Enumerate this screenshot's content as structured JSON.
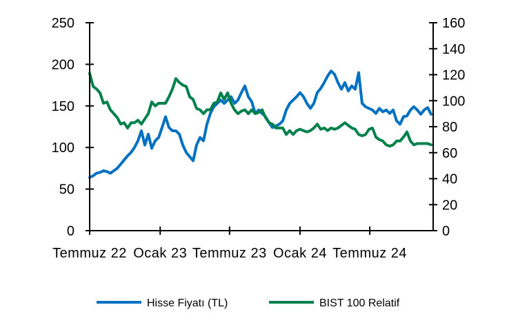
{
  "chart_data": {
    "type": "line",
    "title": "",
    "xlabel": "",
    "ylabel": "",
    "y2label": "",
    "ylim": [
      0,
      250
    ],
    "y2lim": [
      0,
      160
    ],
    "yticks": [
      0,
      50,
      100,
      150,
      200,
      250
    ],
    "y2ticks": [
      0,
      20,
      40,
      60,
      80,
      100,
      120,
      140,
      160
    ],
    "xticks": [
      {
        "date": "2022-07-01",
        "label": "Temmuz 22"
      },
      {
        "date": "2023-01-01",
        "label": "Ocak 23"
      },
      {
        "date": "2023-07-01",
        "label": "Temmuz 23"
      },
      {
        "date": "2024-01-01",
        "label": "Ocak 24"
      },
      {
        "date": "2024-07-01",
        "label": "Temmuz 24"
      }
    ],
    "grid": false,
    "legend_position": "bottom",
    "x": [
      "2022-07-01",
      "2022-07-10",
      "2022-07-19",
      "2022-07-28",
      "2022-08-06",
      "2022-08-15",
      "2022-08-24",
      "2022-09-02",
      "2022-09-11",
      "2022-09-20",
      "2022-09-29",
      "2022-10-08",
      "2022-10-17",
      "2022-10-26",
      "2022-11-04",
      "2022-11-13",
      "2022-11-22",
      "2022-12-01",
      "2022-12-10",
      "2022-12-19",
      "2022-12-28",
      "2023-01-06",
      "2023-01-15",
      "2023-01-24",
      "2023-02-02",
      "2023-02-11",
      "2023-02-20",
      "2023-03-01",
      "2023-03-10",
      "2023-03-19",
      "2023-03-28",
      "2023-04-06",
      "2023-04-15",
      "2023-04-24",
      "2023-05-03",
      "2023-05-12",
      "2023-05-21",
      "2023-05-30",
      "2023-06-08",
      "2023-06-17",
      "2023-06-26",
      "2023-07-05",
      "2023-07-14",
      "2023-07-23",
      "2023-08-01",
      "2023-08-10",
      "2023-08-19",
      "2023-08-28",
      "2023-09-06",
      "2023-09-15",
      "2023-09-24",
      "2023-10-03",
      "2023-10-12",
      "2023-10-21",
      "2023-10-30",
      "2023-11-08",
      "2023-11-17",
      "2023-11-26",
      "2023-12-05",
      "2023-12-14",
      "2023-12-23",
      "2024-01-01",
      "2024-01-10",
      "2024-01-19",
      "2024-01-28",
      "2024-02-06",
      "2024-02-15",
      "2024-02-24",
      "2024-03-04",
      "2024-03-13",
      "2024-03-22",
      "2024-03-31",
      "2024-04-09",
      "2024-04-18",
      "2024-04-27",
      "2024-05-06",
      "2024-05-15",
      "2024-05-24",
      "2024-06-02",
      "2024-06-11",
      "2024-06-20",
      "2024-06-29",
      "2024-07-08",
      "2024-07-17",
      "2024-07-26",
      "2024-08-04",
      "2024-08-13",
      "2024-08-22",
      "2024-08-31",
      "2024-09-09",
      "2024-09-18",
      "2024-09-27",
      "2024-10-06",
      "2024-10-15",
      "2024-10-24",
      "2024-11-02",
      "2024-11-11",
      "2024-11-20",
      "2024-11-29",
      "2024-12-08"
    ],
    "series": [
      {
        "name": "Hisse Fiyatı (TL)",
        "axis": "left",
        "color": "#0070C0",
        "values": [
          64,
          66,
          69,
          70,
          72,
          71,
          69,
          72,
          75,
          80,
          85,
          90,
          94,
          100,
          108,
          120,
          103,
          116,
          99,
          108,
          112,
          124,
          137,
          124,
          120,
          120,
          116,
          103,
          94,
          89,
          84,
          103,
          112,
          108,
          128,
          141,
          149,
          153,
          157,
          153,
          157,
          161,
          153,
          157,
          166,
          174,
          161,
          155,
          141,
          145,
          141,
          137,
          130,
          124,
          126,
          128,
          132,
          145,
          153,
          157,
          161,
          166,
          161,
          153,
          147,
          153,
          166,
          171,
          178,
          186,
          192,
          188,
          178,
          170,
          178,
          168,
          174,
          170,
          190,
          153,
          149,
          147,
          145,
          141,
          147,
          143,
          145,
          141,
          145,
          132,
          128,
          137,
          138,
          145,
          149,
          145,
          140,
          145,
          148,
          140
        ]
      },
      {
        "name": "BIST 100 Relatif",
        "axis": "right",
        "color": "#00804A",
        "values": [
          121,
          111,
          109,
          106,
          98,
          99,
          93,
          90,
          87,
          82,
          83,
          79,
          83,
          83,
          85,
          82,
          86,
          90,
          99,
          96,
          98,
          98,
          98,
          103,
          109,
          117,
          114,
          112,
          111,
          103,
          101,
          94,
          93,
          90,
          93,
          93,
          98,
          99,
          106,
          101,
          106,
          98,
          93,
          90,
          92,
          93,
          90,
          93,
          90,
          91,
          93,
          87,
          83,
          82,
          79,
          79,
          79,
          74,
          77,
          74,
          77,
          78,
          77,
          76,
          77,
          79,
          82,
          78,
          79,
          77,
          79,
          78,
          79,
          81,
          83,
          81,
          79,
          78,
          74,
          73,
          74,
          78,
          79,
          72,
          70,
          69,
          66,
          65,
          66,
          69,
          69,
          72,
          76,
          69,
          66,
          67,
          67,
          67,
          67,
          66
        ]
      }
    ]
  }
}
